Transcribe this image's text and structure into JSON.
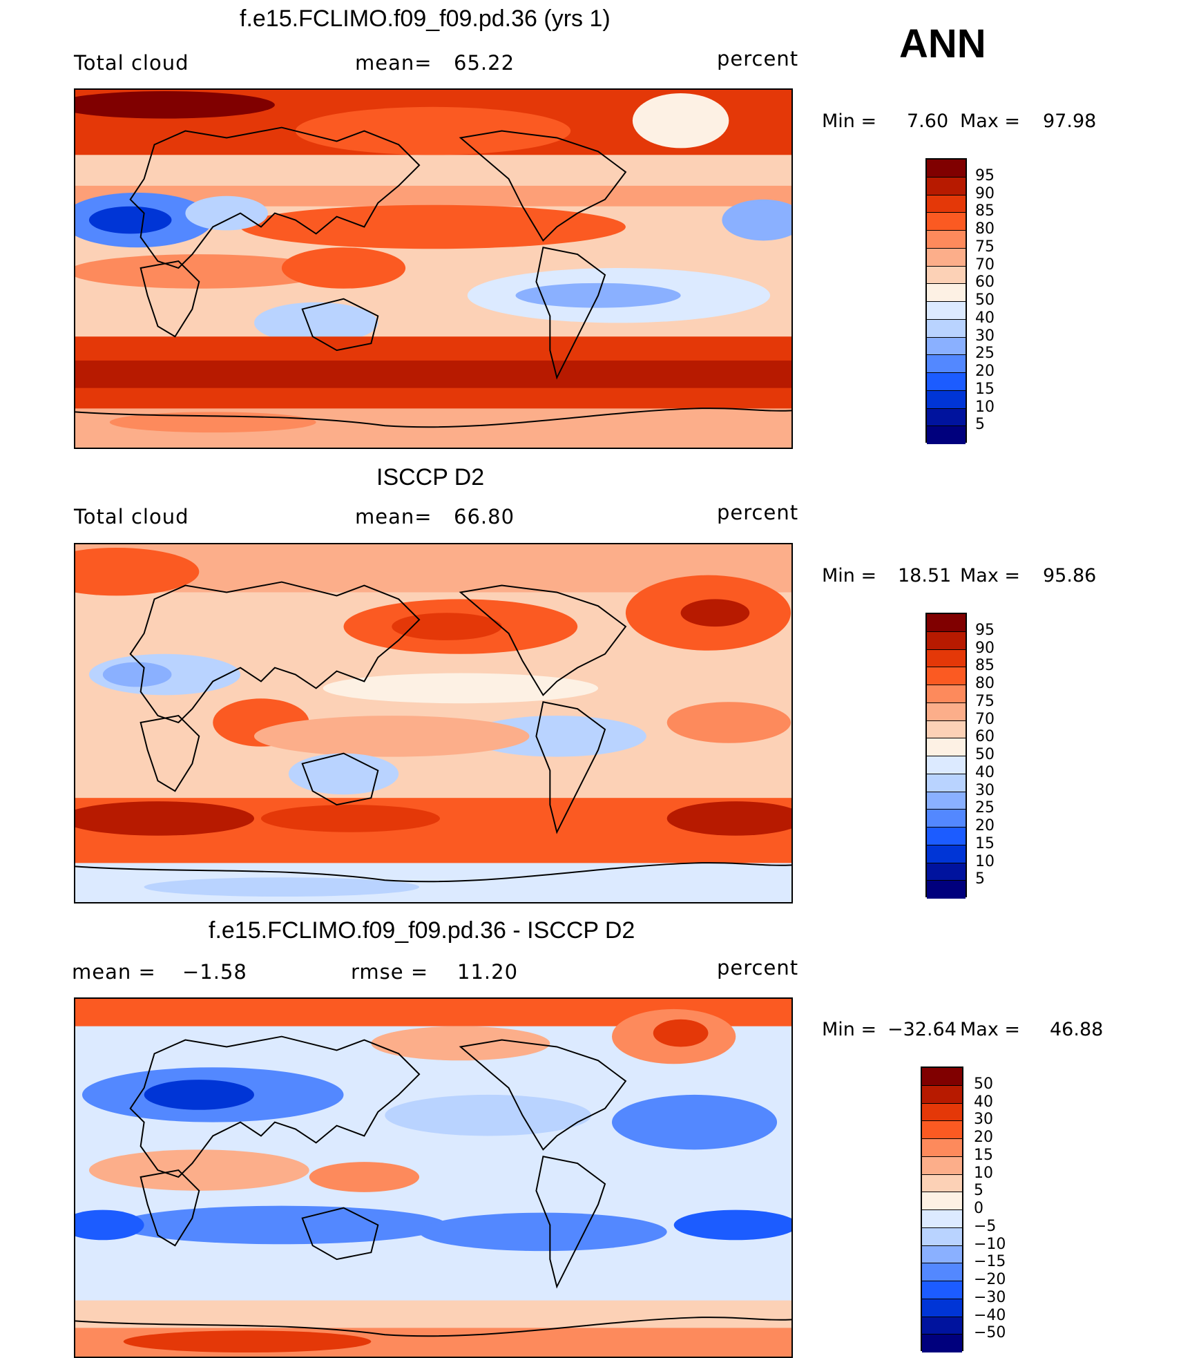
{
  "season": "ANN",
  "colors": {
    "abs_scale": [
      "#00007d",
      "#00139e",
      "#0035d6",
      "#1c5cff",
      "#5388ff",
      "#8ab0ff",
      "#b9d3ff",
      "#dceaff",
      "#fdf1e4",
      "#fcd1b6",
      "#fcae8a",
      "#fd8a5c",
      "#fb5a22",
      "#e43808",
      "#b71a00",
      "#800000"
    ],
    "diff_scale": [
      "#00007d",
      "#00139e",
      "#0035d6",
      "#1c5cff",
      "#5388ff",
      "#8ab0ff",
      "#b9d3ff",
      "#dceaff",
      "#fdf1e4",
      "#fcd1b6",
      "#fcae8a",
      "#fd8a5c",
      "#fb5a22",
      "#e43808",
      "#b71a00",
      "#800000"
    ]
  },
  "panels": [
    {
      "id": "model",
      "title": "f.e15.FCLIMO.f09_f09.pd.36 (yrs 1)",
      "left_label": "Total cloud",
      "center_label": "mean=",
      "center_value": "65.22",
      "right_label": "",
      "units": "percent",
      "min_label": "Min =",
      "min_value": "7.60",
      "max_label": "Max =",
      "max_value": "97.98",
      "levels": [
        "95",
        "90",
        "85",
        "80",
        "75",
        "70",
        "60",
        "50",
        "40",
        "30",
        "25",
        "20",
        "15",
        "10",
        "5"
      ]
    },
    {
      "id": "obs",
      "title": "ISCCP D2",
      "left_label": "Total cloud",
      "center_label": "mean=",
      "center_value": "66.80",
      "right_label": "",
      "units": "percent",
      "min_label": "Min =",
      "min_value": "18.51",
      "max_label": "Max =",
      "max_value": "95.86",
      "levels": [
        "95",
        "90",
        "85",
        "80",
        "75",
        "70",
        "60",
        "50",
        "40",
        "30",
        "25",
        "20",
        "15",
        "10",
        "5"
      ]
    },
    {
      "id": "diff",
      "title": "f.e15.FCLIMO.f09_f09.pd.36 - ISCCP D2",
      "left_label": "mean =",
      "left_value": "−1.58",
      "center_label": "rmse =",
      "center_value": "11.20",
      "units": "percent",
      "min_label": "Min =",
      "min_value": "−32.64",
      "max_label": "Max =",
      "max_value": "46.88",
      "levels": [
        "50",
        "40",
        "30",
        "20",
        "15",
        "10",
        "5",
        "0",
        "−5",
        "−10",
        "−15",
        "−20",
        "−30",
        "−40",
        "−50"
      ]
    }
  ]
}
